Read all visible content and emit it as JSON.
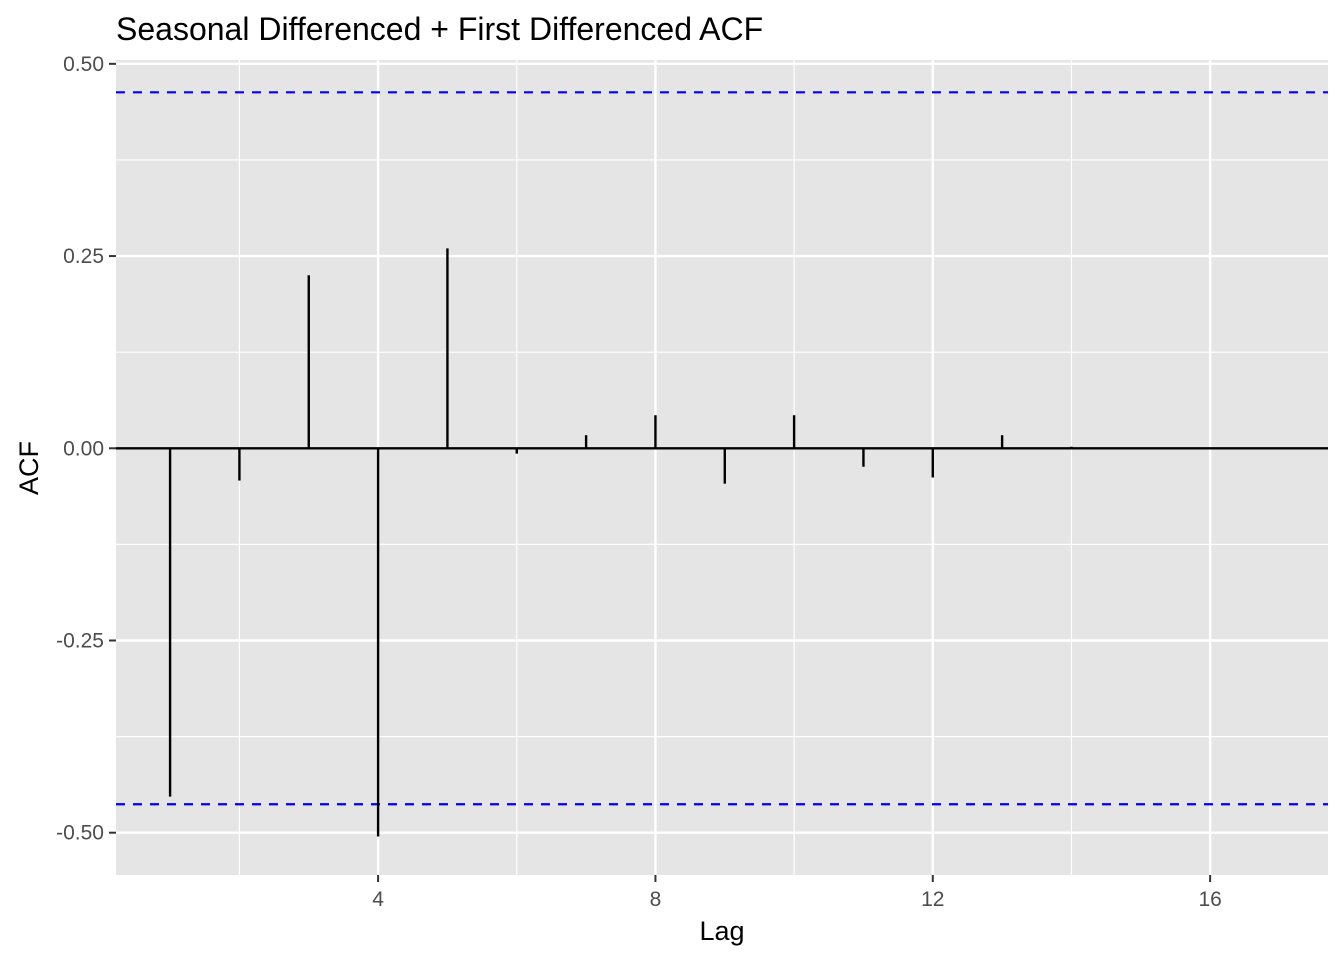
{
  "chart_data": {
    "type": "bar",
    "title": "Seasonal Differenced + First Differenced ACF",
    "xlabel": "Lag",
    "ylabel": "ACF",
    "lags": [
      1,
      2,
      3,
      4,
      5,
      6,
      7,
      8,
      9,
      10,
      11,
      12,
      13,
      14
    ],
    "values": [
      -0.453,
      -0.042,
      0.225,
      -0.505,
      0.26,
      -0.007,
      0.017,
      0.043,
      -0.046,
      0.043,
      -0.024,
      -0.038,
      0.017,
      0.002
    ],
    "confidence_bound": 0.463,
    "xlim": [
      0.22,
      17.7
    ],
    "ylim": [
      -0.555,
      0.505
    ],
    "x_ticks": [
      4,
      8,
      12,
      16
    ],
    "x_tick_labels": [
      "4",
      "8",
      "12",
      "16"
    ],
    "y_ticks": [
      -0.5,
      -0.25,
      0,
      0.25,
      0.5
    ],
    "y_tick_labels": [
      "-0.50",
      "-0.25",
      "0.00",
      "0.25",
      "0.50"
    ],
    "grid": true,
    "colors": {
      "panel_background": "#e5e5e5",
      "grid": "#ffffff",
      "bars": "#000000",
      "confidence_lines": "#0000ff"
    }
  }
}
